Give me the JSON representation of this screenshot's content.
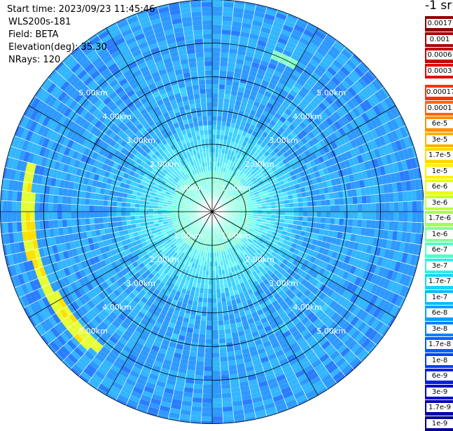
{
  "header": {
    "start_time": "Start time: 2023/09/23 11:45:46",
    "instrument": "WLS200s-181",
    "field": "Field: BETA",
    "elevation": "Elevation(deg): 35.30",
    "nrays": "NRays: 120"
  },
  "colorbar": {
    "title": "-1 sr",
    "upper_labels": [
      "0.0017",
      "0.001",
      "0.0006",
      "0.0003"
    ],
    "upper_colors": [
      "#8b0000",
      "#a80000",
      "#c80000",
      "#e60000"
    ],
    "lower_labels": [
      "0.00017",
      "0.0001",
      "6e-5",
      "3e-5",
      "1.7e-5",
      "1e-5",
      "6e-6",
      "3e-6",
      "1.7e-6",
      "1e-6",
      "6e-7",
      "3e-7",
      "1.7e-7",
      "1e-7",
      "6e-8",
      "3e-8",
      "1.7e-8",
      "1e-8",
      "6e-9",
      "3e-9",
      "1.7e-9",
      "1e-9"
    ],
    "lower_colors": [
      "#ff3000",
      "#ff6600",
      "#ff9000",
      "#ffb000",
      "#ffd800",
      "#fff000",
      "#e8ff10",
      "#c0ff38",
      "#a0ff58",
      "#80ffa0",
      "#50ffc8",
      "#30f0e8",
      "#10d8f8",
      "#00bcff",
      "#00a0ff",
      "#0080ff",
      "#0060ff",
      "#0040f0",
      "#0020e0",
      "#0000d0",
      "#0000b0",
      "#000090"
    ]
  },
  "chart_data": {
    "type": "heatmap",
    "projection": "polar PPI scan",
    "rings_km": [
      1,
      2,
      3,
      4,
      5
    ],
    "ring_labels": [
      "1.00km",
      "2.00km",
      "3.00km",
      "4.00km",
      "5.00km"
    ],
    "max_range_km": 6.3,
    "n_rays": 120,
    "spokes": 12,
    "quantity": "attenuated backscatter (BETA)",
    "value_scale": "log",
    "feature": "enhanced backscatter arc on west side near 5.5 km range"
  }
}
